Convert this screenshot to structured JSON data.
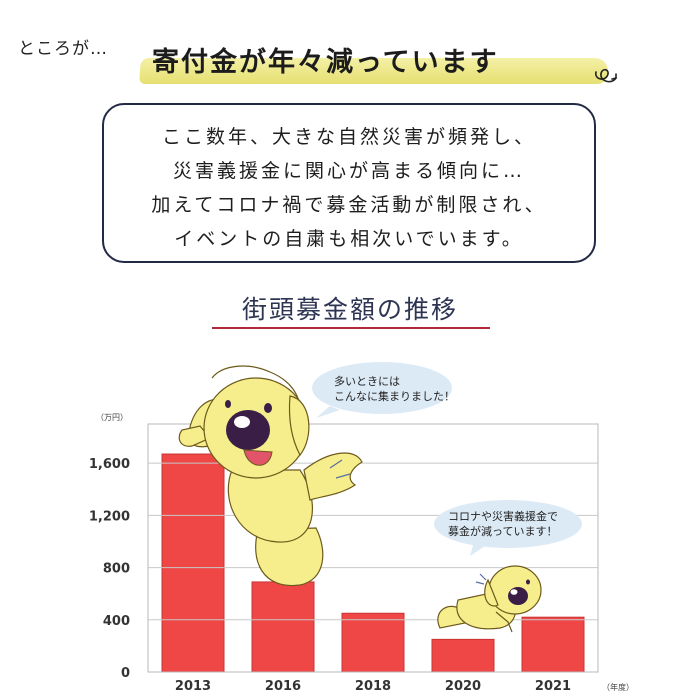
{
  "header": {
    "lead": "ところが…",
    "headline": "寄付金が年々減っています"
  },
  "message": {
    "lines": [
      "ここ数年、大きな自然災害が頻発し、",
      "災害義援金に関心が高まる傾向に…",
      "加えてコロナ禍で募金活動が制限され、",
      "イベントの自粛も相次いでいます。"
    ]
  },
  "colors": {
    "bar": "#ef4646",
    "bar_edge": "#c93434",
    "bubble": "#dceaf6",
    "mascot": "#f6ee8c",
    "title_underline": "#b3283b"
  },
  "chart_data": {
    "type": "bar",
    "title": "街頭募金額の推移",
    "y_unit": "（万円）",
    "x_unit": "（年度）",
    "categories": [
      "2013",
      "2016",
      "2018",
      "2020",
      "2021"
    ],
    "values": [
      1670,
      690,
      450,
      250,
      420
    ],
    "y_ticks": [
      "0",
      "400",
      "800",
      "1,200",
      "1,600"
    ],
    "ylim": [
      0,
      1900
    ],
    "grid": true,
    "annotations": [
      {
        "lines": [
          "多いときには",
          "こんなに集まりました！"
        ]
      },
      {
        "lines": [
          "コロナや災害義援金で",
          "募金が減っています！"
        ]
      }
    ]
  }
}
